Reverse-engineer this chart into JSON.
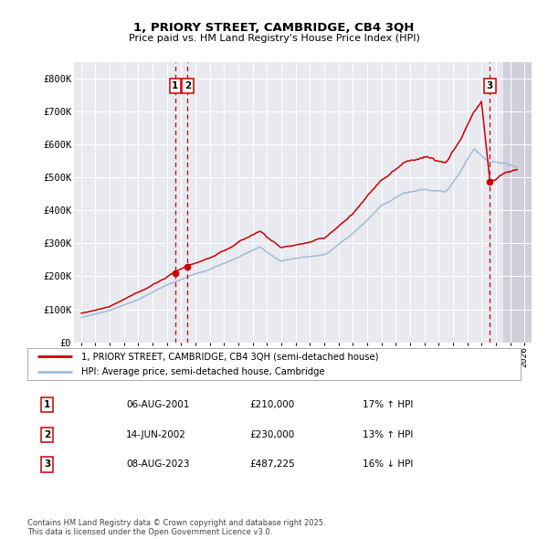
{
  "title": "1, PRIORY STREET, CAMBRIDGE, CB4 3QH",
  "subtitle": "Price paid vs. HM Land Registry's House Price Index (HPI)",
  "background_color": "#ffffff",
  "plot_bg_color": "#e8eaf0",
  "grid_color": "#d0d4e0",
  "hpi_color": "#a0bcd8",
  "price_color": "#cc0000",
  "ylim": [
    0,
    850000
  ],
  "yticks": [
    0,
    100000,
    200000,
    300000,
    400000,
    500000,
    600000,
    700000,
    800000
  ],
  "ytick_labels": [
    "£0",
    "£100K",
    "£200K",
    "£300K",
    "£400K",
    "£500K",
    "£600K",
    "£700K",
    "£800K"
  ],
  "xlim_start": 1994.5,
  "xlim_end": 2026.5,
  "sale_dates": [
    2001.583,
    2002.44,
    2023.583
  ],
  "sale_prices": [
    210000,
    230000,
    487225
  ],
  "sale_labels": [
    "1",
    "2",
    "3"
  ],
  "legend_line1": "1, PRIORY STREET, CAMBRIDGE, CB4 3QH (semi-detached house)",
  "legend_line2": "HPI: Average price, semi-detached house, Cambridge",
  "table_entries": [
    [
      "1",
      "06-AUG-2001",
      "£210,000",
      "17% ↑ HPI"
    ],
    [
      "2",
      "14-JUN-2002",
      "£230,000",
      "13% ↑ HPI"
    ],
    [
      "3",
      "08-AUG-2023",
      "£487,225",
      "16% ↓ HPI"
    ]
  ],
  "footnote": "Contains HM Land Registry data © Crown copyright and database right 2025.\nThis data is licensed under the Open Government Licence v3.0.",
  "future_start": 2024.5,
  "future_color": "#d0d0dc"
}
